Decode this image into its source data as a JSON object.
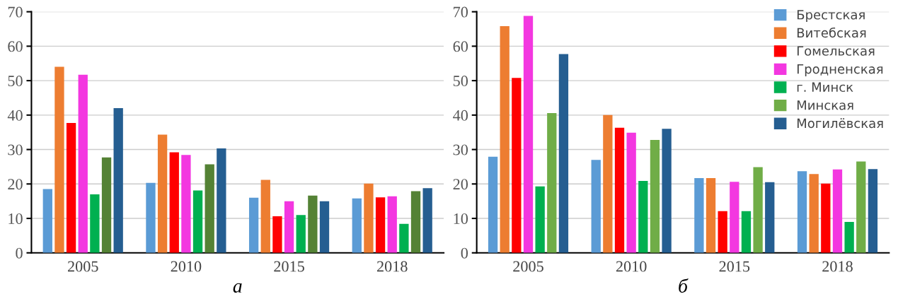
{
  "chart_data": [
    {
      "type": "bar",
      "xlabel": "а",
      "categories": [
        "2005",
        "2010",
        "2015",
        "2018"
      ],
      "ylim": [
        0,
        70
      ],
      "yticks": [
        0,
        10,
        20,
        30,
        40,
        50,
        60,
        70
      ],
      "grid": "y",
      "legend": false,
      "series": [
        {
          "color": "#5b9bd5",
          "values": [
            18.5,
            20.3,
            16,
            15.8
          ]
        },
        {
          "color": "#ed7d31",
          "values": [
            54,
            34.3,
            21.2,
            20.1
          ]
        },
        {
          "color": "#ff0000",
          "values": [
            37.7,
            29.2,
            10.6,
            16.1
          ]
        },
        {
          "color": "#f337e0",
          "values": [
            51.7,
            28.4,
            15,
            16.4
          ]
        },
        {
          "color": "#00b050",
          "values": [
            17,
            18.1,
            11,
            8.4
          ]
        },
        {
          "color": "#548235",
          "values": [
            27.7,
            25.7,
            16.6,
            17.9
          ]
        },
        {
          "color": "#255e91",
          "values": [
            42,
            30.3,
            15,
            18.8
          ]
        }
      ]
    },
    {
      "type": "bar",
      "xlabel": "б",
      "categories": [
        "2005",
        "2010",
        "2015",
        "2018"
      ],
      "ylim": [
        0,
        70
      ],
      "yticks": [
        0,
        10,
        20,
        30,
        40,
        50,
        60,
        70
      ],
      "grid": "y",
      "legend": "top right",
      "series": [
        {
          "name": "Брестская",
          "color": "#5b9bd5",
          "values": [
            27.9,
            27,
            21.7,
            23.7
          ]
        },
        {
          "name": "Витебская",
          "color": "#ed7d31",
          "values": [
            65.8,
            40,
            21.7,
            22.9
          ]
        },
        {
          "name": "Гомельская",
          "color": "#ff0000",
          "values": [
            50.8,
            36.3,
            12.1,
            20.1
          ]
        },
        {
          "name": "Гродненская",
          "color": "#f337e0",
          "values": [
            68.8,
            34.9,
            20.6,
            24.2
          ]
        },
        {
          "name": "г. Минск",
          "color": "#00b050",
          "values": [
            19.3,
            20.9,
            12.1,
            9
          ]
        },
        {
          "name": "Минская",
          "color": "#70ad47",
          "values": [
            40.6,
            32.8,
            24.9,
            26.5
          ]
        },
        {
          "name": "Могилёвская",
          "color": "#255e91",
          "values": [
            57.7,
            36,
            20.5,
            24.3
          ]
        }
      ]
    }
  ]
}
